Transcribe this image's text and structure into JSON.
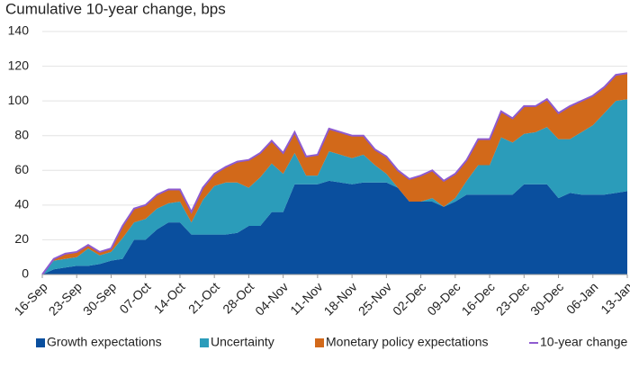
{
  "chart_data": {
    "type": "stacked-area",
    "title": "Cumulative 10-year change, bps",
    "categories": [
      "16-Sep",
      null,
      null,
      "23-Sep",
      null,
      null,
      "30-Sep",
      null,
      null,
      "07-Oct",
      null,
      null,
      "14-Oct",
      null,
      null,
      "21-Oct",
      null,
      null,
      "28-Oct",
      null,
      null,
      "04-Nov",
      null,
      null,
      "11-Nov",
      null,
      null,
      "18-Nov",
      null,
      null,
      "25-Nov",
      null,
      null,
      "02-Dec",
      null,
      null,
      "09-Dec",
      null,
      null,
      "16-Dec",
      null,
      null,
      "23-Dec",
      null,
      null,
      "30-Dec",
      null,
      null,
      "06-Jan",
      null,
      null,
      "13-Jan"
    ],
    "series": [
      {
        "name": "Growth expectations",
        "color": "#0a4f9e",
        "values": [
          0,
          3,
          4,
          5,
          5,
          6,
          8,
          9,
          20,
          20,
          26,
          30,
          30,
          23,
          23,
          23,
          23,
          24,
          28,
          28,
          36,
          36,
          52,
          52,
          52,
          54,
          53,
          52,
          53,
          53,
          53,
          50,
          42,
          42,
          42,
          39,
          42,
          46,
          46,
          46,
          46,
          46,
          52,
          52,
          52,
          44,
          47,
          46,
          46,
          46,
          47,
          48
        ]
      },
      {
        "name": "Uncertainty",
        "color": "#2b9cba",
        "values": [
          0,
          5,
          5,
          5,
          10,
          5,
          5,
          12,
          10,
          12,
          12,
          11,
          12,
          7,
          20,
          28,
          30,
          29,
          22,
          28,
          28,
          22,
          18,
          5,
          5,
          17,
          16,
          15,
          16,
          10,
          5,
          0,
          0,
          0,
          2,
          0,
          2,
          8,
          17,
          17,
          33,
          30,
          29,
          30,
          33,
          34,
          31,
          36,
          40,
          47,
          53,
          53
        ]
      },
      {
        "name": "Monetary policy expectations",
        "color": "#d2691a",
        "values": [
          0,
          1,
          3,
          3,
          2,
          2,
          2,
          7,
          8,
          8,
          8,
          8,
          7,
          6,
          7,
          7,
          9,
          12,
          16,
          14,
          13,
          12,
          12,
          11,
          12,
          13,
          13,
          13,
          11,
          9,
          10,
          10,
          13,
          15,
          16,
          15,
          14,
          12,
          15,
          15,
          15,
          14,
          16,
          15,
          16,
          15,
          19,
          18,
          17,
          15,
          15,
          15
        ]
      },
      {
        "name": "10-year change",
        "color": "#8e5bd0",
        "type": "line",
        "values": [
          0,
          9,
          12,
          13,
          17,
          13,
          15,
          28,
          38,
          40,
          46,
          49,
          49,
          36,
          50,
          58,
          62,
          65,
          66,
          70,
          77,
          70,
          82,
          68,
          69,
          84,
          82,
          80,
          80,
          72,
          68,
          60,
          55,
          57,
          60,
          54,
          58,
          66,
          78,
          78,
          94,
          90,
          97,
          97,
          101,
          93,
          97,
          100,
          103,
          108,
          115,
          116
        ]
      }
    ],
    "ylim": [
      0,
      140
    ],
    "yticks": [
      0,
      20,
      40,
      60,
      80,
      100,
      120,
      140
    ],
    "grid": true
  }
}
